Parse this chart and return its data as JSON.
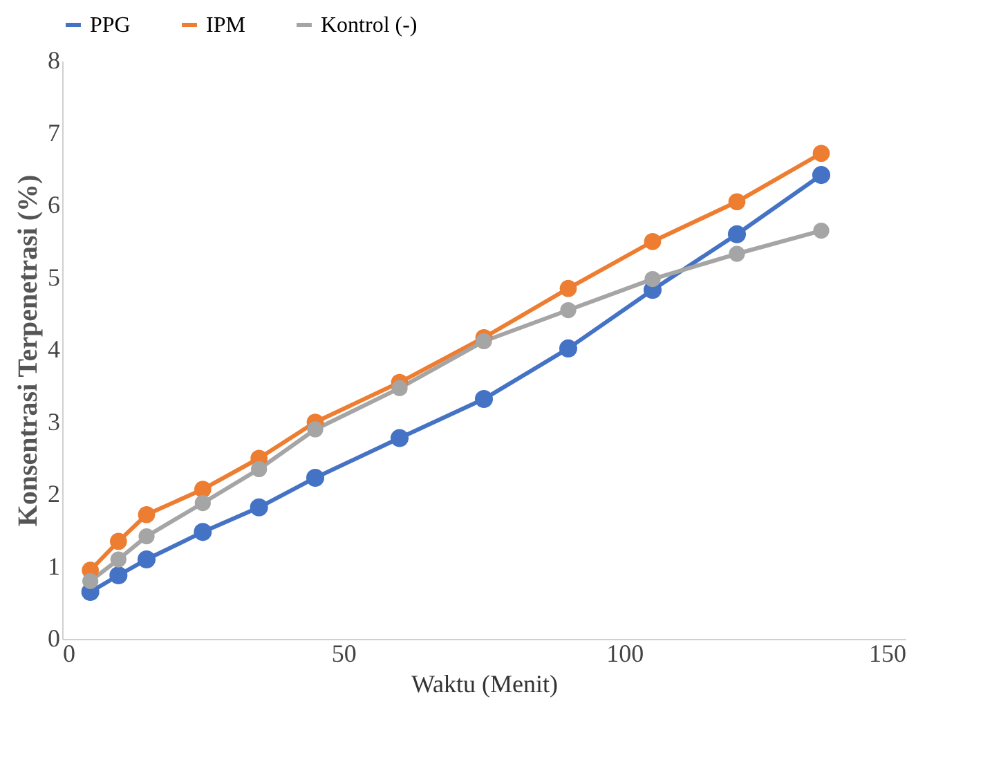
{
  "chart_data": {
    "type": "line",
    "xlabel": "Waktu (Menit)",
    "ylabel": "Konsentrasi Terpenetrasi (%)",
    "x": [
      5,
      10,
      15,
      25,
      35,
      45,
      60,
      75,
      90,
      105,
      120,
      135
    ],
    "xlim": [
      0,
      150
    ],
    "xticks": [
      0,
      50,
      100,
      150
    ],
    "ylim": [
      0,
      8
    ],
    "yticks": [
      0,
      1,
      2,
      3,
      4,
      5,
      6,
      7,
      8
    ],
    "grid": false,
    "legend": "top",
    "marker": "circle",
    "line_style": "solid",
    "series": [
      {
        "name": "PPG",
        "color": "#4472c4",
        "values": [
          0.65,
          0.88,
          1.1,
          1.48,
          1.82,
          2.23,
          2.78,
          3.32,
          4.02,
          4.83,
          5.6,
          6.42
        ]
      },
      {
        "name": "IPM",
        "color": "#ed7d31",
        "values": [
          0.95,
          1.35,
          1.72,
          2.07,
          2.5,
          3.0,
          3.55,
          4.17,
          4.85,
          5.5,
          6.05,
          6.72
        ]
      },
      {
        "name": "Kontrol (-)",
        "color": "#a5a5a5",
        "values": [
          0.8,
          1.1,
          1.42,
          1.88,
          2.35,
          2.9,
          3.47,
          4.12,
          4.55,
          4.98,
          5.33,
          5.65
        ]
      }
    ]
  }
}
